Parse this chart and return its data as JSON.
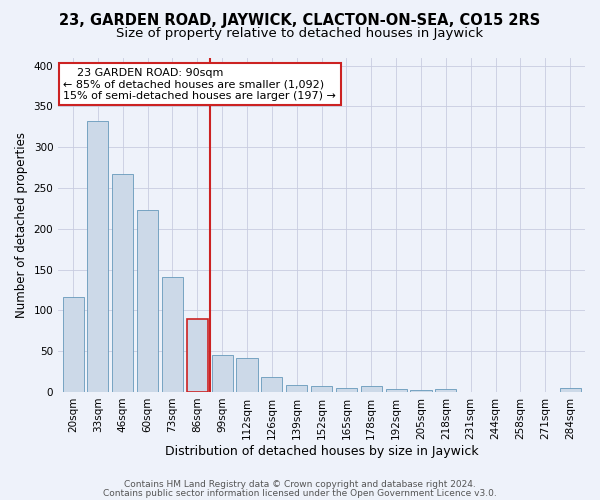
{
  "title": "23, GARDEN ROAD, JAYWICK, CLACTON-ON-SEA, CO15 2RS",
  "subtitle": "Size of property relative to detached houses in Jaywick",
  "xlabel": "Distribution of detached houses by size in Jaywick",
  "ylabel": "Number of detached properties",
  "categories": [
    "20sqm",
    "33sqm",
    "46sqm",
    "60sqm",
    "73sqm",
    "86sqm",
    "99sqm",
    "112sqm",
    "126sqm",
    "139sqm",
    "152sqm",
    "165sqm",
    "178sqm",
    "192sqm",
    "205sqm",
    "218sqm",
    "231sqm",
    "244sqm",
    "258sqm",
    "271sqm",
    "284sqm"
  ],
  "values": [
    116,
    332,
    267,
    223,
    141,
    90,
    45,
    42,
    18,
    9,
    7,
    5,
    7,
    4,
    3,
    4,
    0,
    0,
    0,
    0,
    5
  ],
  "bar_color": "#ccd9e8",
  "bar_edge_color": "#6699bb",
  "highlight_bar_index": 5,
  "highlight_bar_color": "#ccd9e8",
  "highlight_bar_edge_color": "#cc2222",
  "vline_x": 5.5,
  "vline_color": "#cc2222",
  "annotation_line1": "    23 GARDEN ROAD: 90sqm",
  "annotation_line2": "← 85% of detached houses are smaller (1,092)",
  "annotation_line3": "15% of semi-detached houses are larger (197) →",
  "annotation_box_color": "white",
  "annotation_box_edge_color": "#cc2222",
  "ylim": [
    0,
    410
  ],
  "yticks": [
    0,
    50,
    100,
    150,
    200,
    250,
    300,
    350,
    400
  ],
  "grid_color": "#c8cce0",
  "bg_color": "#eef2fa",
  "footer_line1": "Contains HM Land Registry data © Crown copyright and database right 2024.",
  "footer_line2": "Contains public sector information licensed under the Open Government Licence v3.0.",
  "title_fontsize": 10.5,
  "subtitle_fontsize": 9.5,
  "xlabel_fontsize": 9,
  "ylabel_fontsize": 8.5,
  "tick_fontsize": 7.5,
  "annotation_fontsize": 8,
  "footer_fontsize": 6.5
}
